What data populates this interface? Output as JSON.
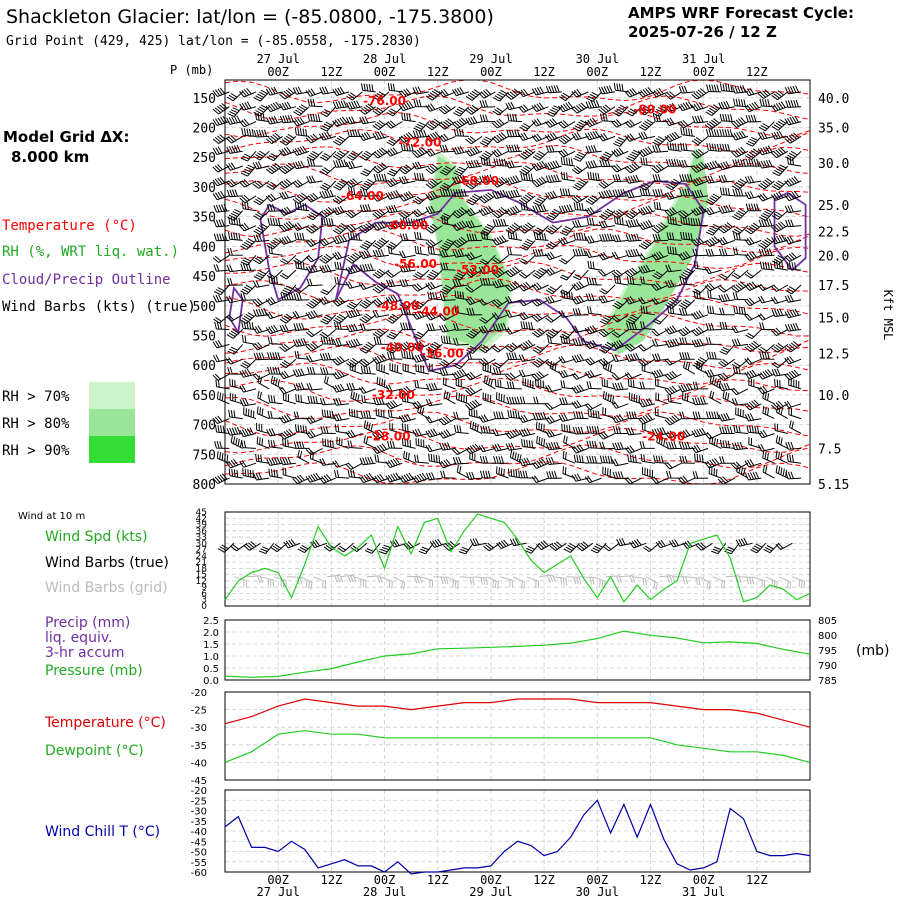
{
  "header": {
    "title": "Shackleton Glacier:  lat/lon = (-85.0800, -175.3800)",
    "grid_point": "Grid Point (429, 425) lat/lon = (-85.0558, -175.2830)",
    "cycle_label": "AMPS WRF Forecast Cycle:",
    "cycle_value": "2025-07-26 / 12  Z"
  },
  "colors": {
    "temperature": "#ff0000",
    "rh": "#33cc33",
    "cloud": "#7030a0",
    "wind": "#000000",
    "grid_wind": "#bbbbbb",
    "dewpoint": "#00bb00",
    "wind_chill": "#0000aa",
    "rh70": "#ccf5cc",
    "rh80": "#99e699",
    "rh90": "#33dd33"
  },
  "legend": {
    "model_grid": "Model Grid ΔX:",
    "model_grid_value": "8.000 km",
    "temperature": "Temperature (°C)",
    "rh": "RH (%, WRT liq. wat.)",
    "cloud": "Cloud/Precip Outline",
    "wind": "Wind Barbs (kts) (true)",
    "rh70": "RH > 70%",
    "rh80": "RH > 80%",
    "rh90": "RH > 90%"
  },
  "time_axis": {
    "hours": [
      "00Z",
      "12Z",
      "00Z",
      "12Z",
      "00Z",
      "12Z",
      "00Z",
      "12Z",
      "00Z",
      "12Z"
    ],
    "dates": [
      "27 Jul",
      "28 Jul",
      "29 Jul",
      "30 Jul",
      "31 Jul"
    ]
  },
  "chart_data": [
    {
      "type": "heatmap",
      "name": "cross-section",
      "ylabel": "P (mb)",
      "ylabel_right": "Kft MSL",
      "pressure_ticks": [
        150,
        200,
        250,
        300,
        350,
        400,
        450,
        500,
        550,
        600,
        650,
        700,
        750,
        800
      ],
      "kft_ticks": [
        "40.0",
        "35.0",
        "30.0",
        "25.0",
        "22.5",
        "20.0",
        "17.5",
        "15.0",
        "12.5",
        "10.0",
        "7.5",
        "5.15"
      ],
      "kft_pressures": [
        150,
        200,
        260,
        330,
        375,
        415,
        465,
        520,
        580,
        650,
        740,
        800
      ],
      "ylim": [
        120,
        800
      ],
      "xlim_hours": [
        -12,
        120
      ],
      "temperature_labels": [
        {
          "text": "-76.00",
          "hour": 24,
          "p": 155
        },
        {
          "text": "-80.00",
          "hour": 85,
          "p": 170
        },
        {
          "text": "-72.00",
          "hour": 32,
          "p": 225
        },
        {
          "text": "-68.00",
          "hour": 45,
          "p": 290
        },
        {
          "text": "-64.00",
          "hour": 19,
          "p": 315
        },
        {
          "text": "-60.00",
          "hour": 29,
          "p": 365
        },
        {
          "text": "-56.00",
          "hour": 31,
          "p": 430
        },
        {
          "text": "-52.00",
          "hour": 45,
          "p": 440
        },
        {
          "text": "-48.00",
          "hour": 27,
          "p": 500
        },
        {
          "text": "-44.00",
          "hour": 36,
          "p": 510
        },
        {
          "text": "-40.00",
          "hour": 28,
          "p": 570
        },
        {
          "text": "-36.00",
          "hour": 37,
          "p": 580
        },
        {
          "text": "-32.00",
          "hour": 26,
          "p": 650
        },
        {
          "text": "-28.00",
          "hour": 25,
          "p": 720
        },
        {
          "text": "-24.00",
          "hour": 87,
          "p": 720
        }
      ]
    },
    {
      "type": "line",
      "name": "wind-10m",
      "title": "Wind at 10 m",
      "series_labels": [
        "Wind Spd (kts)",
        "Wind Barbs (true)",
        "Wind Barbs (grid)"
      ],
      "yticks": [
        0,
        3,
        6,
        9,
        12,
        15,
        18,
        21,
        24,
        27,
        30,
        33,
        36,
        39,
        42,
        45
      ],
      "ylim": [
        0,
        45
      ],
      "x": [
        -12,
        -9,
        -6,
        -3,
        0,
        3,
        6,
        9,
        12,
        15,
        18,
        21,
        24,
        27,
        30,
        33,
        36,
        39,
        42,
        45,
        48,
        51,
        54,
        57,
        60,
        63,
        66,
        69,
        72,
        75,
        78,
        81,
        84,
        87,
        90,
        93,
        96,
        99,
        102,
        105,
        108,
        111,
        114,
        117,
        120
      ],
      "values": [
        3,
        12,
        16,
        18,
        16,
        4,
        20,
        38,
        28,
        24,
        28,
        34,
        18,
        38,
        25,
        40,
        42,
        26,
        36,
        44,
        42,
        40,
        32,
        22,
        16,
        20,
        24,
        13,
        4,
        14,
        2,
        10,
        3,
        8,
        12,
        30,
        32,
        34,
        23,
        2,
        4,
        10,
        8,
        3,
        6
      ]
    },
    {
      "type": "line",
      "name": "precip-pressure",
      "series_labels": [
        "Precip (mm)",
        "liq. equiv.",
        "3-hr accum",
        "Pressure (mb)"
      ],
      "yticks_left": [
        "2.5",
        "2.0",
        "1.5",
        "1.0",
        "0.5",
        "0.0"
      ],
      "yticks_right": [
        "805",
        "800",
        "795",
        "790",
        "785"
      ],
      "unit_right": "(mb)",
      "ylim_left": [
        0,
        2.5
      ],
      "ylim_right": [
        785,
        805
      ],
      "x": [
        -12,
        -6,
        0,
        6,
        12,
        18,
        24,
        30,
        36,
        42,
        48,
        54,
        60,
        66,
        72,
        78,
        84,
        90,
        96,
        102,
        108,
        114,
        120
      ],
      "pressure": [
        786.3,
        785.9,
        786.2,
        787.6,
        788.8,
        791.0,
        793.0,
        793.7,
        795.4,
        795.6,
        795.9,
        796.2,
        796.6,
        797.3,
        798.8,
        801.3,
        799.9,
        799.0,
        797.4,
        797.7,
        797.2,
        795.2,
        793.6
      ]
    },
    {
      "type": "line",
      "name": "temp-dewpoint",
      "series_labels": [
        "Temperature (°C)",
        "Dewpoint (°C)"
      ],
      "yticks": [
        -20,
        -25,
        -30,
        -35,
        -40,
        -45
      ],
      "ylim": [
        -45,
        -20
      ],
      "x": [
        -12,
        -6,
        0,
        6,
        12,
        18,
        24,
        30,
        36,
        42,
        48,
        54,
        60,
        66,
        72,
        78,
        84,
        90,
        96,
        102,
        108,
        114,
        120
      ],
      "temperature": [
        -29,
        -27,
        -24,
        -22,
        -23,
        -24,
        -24,
        -25,
        -24,
        -23,
        -23,
        -22,
        -22,
        -22,
        -23,
        -23,
        -23,
        -24,
        -25,
        -25,
        -26,
        -28,
        -30
      ],
      "dewpoint": [
        -40,
        -37,
        -32,
        -31,
        -32,
        -32,
        -33,
        -33,
        -33,
        -33,
        -33,
        -33,
        -33,
        -33,
        -33,
        -33,
        -33,
        -35,
        -36,
        -37,
        -37,
        -38,
        -40
      ]
    },
    {
      "type": "line",
      "name": "wind-chill",
      "series_labels": [
        "Wind Chill T (°C)"
      ],
      "yticks": [
        -20,
        -25,
        -30,
        -35,
        -40,
        -45,
        -50,
        -55,
        -60
      ],
      "ylim": [
        -60,
        -20
      ],
      "x": [
        -12,
        -9,
        -6,
        -3,
        0,
        3,
        6,
        9,
        12,
        15,
        18,
        21,
        24,
        27,
        30,
        33,
        36,
        39,
        42,
        45,
        48,
        51,
        54,
        57,
        60,
        63,
        66,
        69,
        72,
        75,
        78,
        81,
        84,
        87,
        90,
        93,
        96,
        99,
        102,
        105,
        108,
        111,
        114,
        117,
        120
      ],
      "values": [
        -38,
        -33,
        -48,
        -48,
        -50,
        -45,
        -49,
        -58,
        -56,
        -54,
        -57,
        -57,
        -60,
        -55,
        -61,
        -60,
        -60,
        -59,
        -58,
        -58,
        -57,
        -50,
        -45,
        -47,
        -52,
        -50,
        -43,
        -32,
        -25,
        -41,
        -27,
        -43,
        -27,
        -44,
        -56,
        -59,
        -58,
        -55,
        -29,
        -34,
        -50,
        -52,
        -52,
        -51,
        -52
      ]
    }
  ]
}
